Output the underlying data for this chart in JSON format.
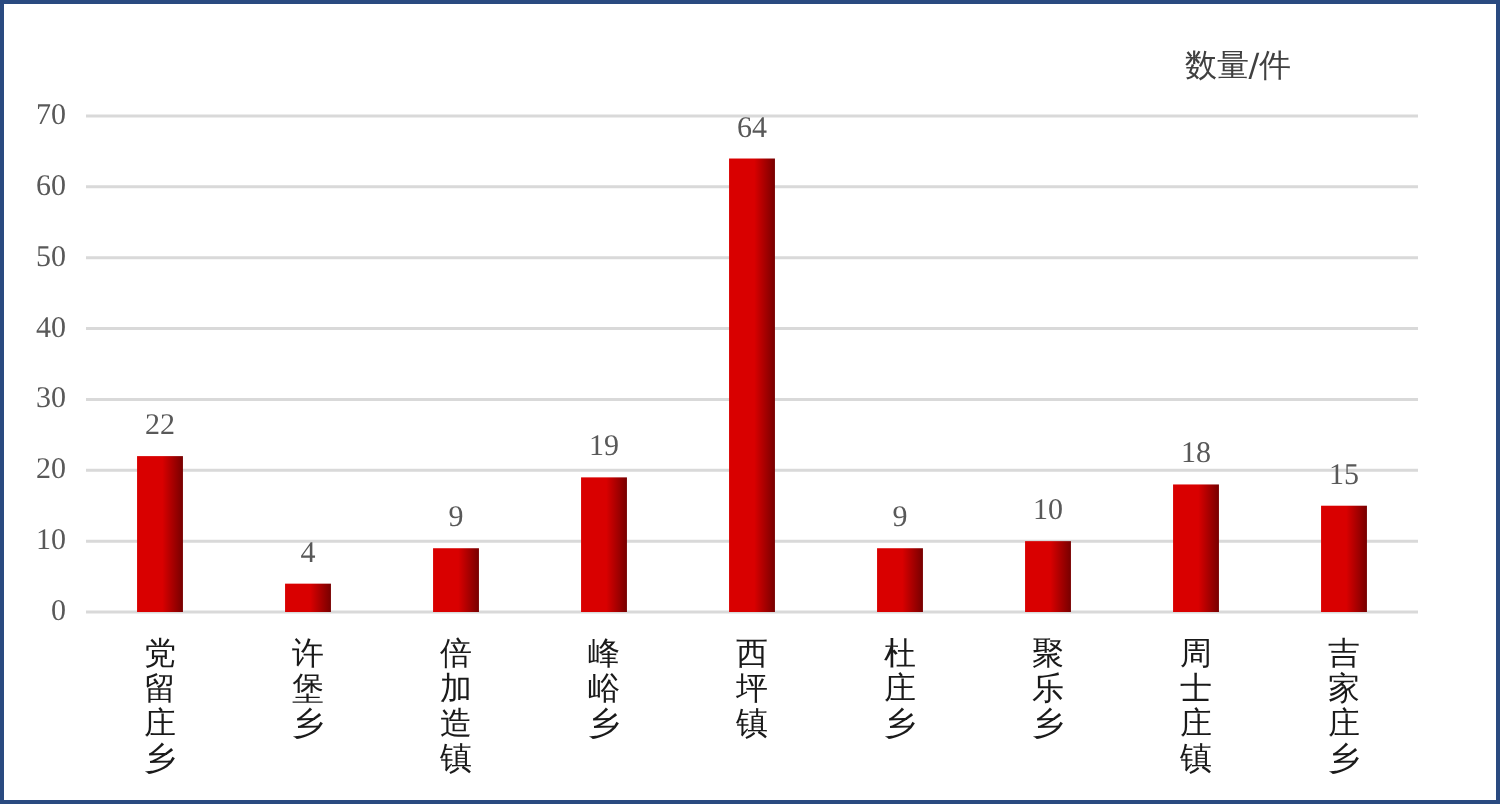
{
  "chart_data": {
    "type": "bar",
    "ylabel": "数量/件",
    "categories": [
      "党留庄乡",
      "许堡乡",
      "倍加造镇",
      "峰峪乡",
      "西坪镇",
      "杜庄乡",
      "聚乐乡",
      "周士庄镇",
      "吉家庄乡"
    ],
    "values": [
      22,
      4,
      9,
      19,
      64,
      9,
      10,
      18,
      15
    ],
    "color": "#d90000",
    "ylim": [
      0,
      70
    ],
    "yticks": [
      0,
      10,
      20,
      30,
      40,
      50,
      60,
      70
    ],
    "grid": "y",
    "data_labels": true
  }
}
